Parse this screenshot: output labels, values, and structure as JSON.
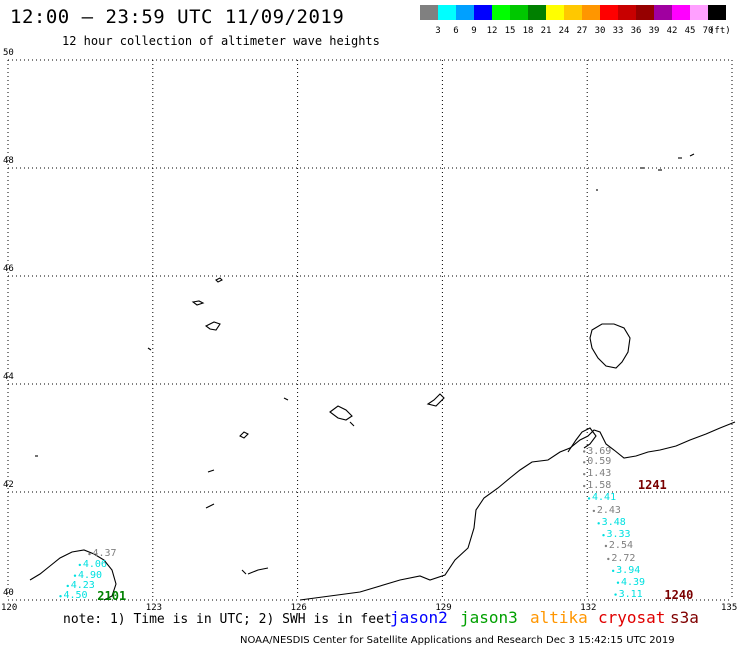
{
  "header": {
    "title": "12:00 — 23:59 UTC 11/09/2019",
    "subtitle": "12 hour collection of altimeter wave heights"
  },
  "colorbar": {
    "unit": "(ft)",
    "swatches": [
      {
        "color": "#808080",
        "label": "3"
      },
      {
        "color": "#00ffff",
        "label": "6"
      },
      {
        "color": "#00a0ff",
        "label": "9"
      },
      {
        "color": "#0000ff",
        "label": "12"
      },
      {
        "color": "#00ff00",
        "label": "15"
      },
      {
        "color": "#00c800",
        "label": "18"
      },
      {
        "color": "#008000",
        "label": "21"
      },
      {
        "color": "#ffff00",
        "label": "24"
      },
      {
        "color": "#ffc800",
        "label": "27"
      },
      {
        "color": "#ff9600",
        "label": "30"
      },
      {
        "color": "#ff0000",
        "label": "33"
      },
      {
        "color": "#c80000",
        "label": "36"
      },
      {
        "color": "#960000",
        "label": "39"
      },
      {
        "color": "#a000a0",
        "label": "42"
      },
      {
        "color": "#ff00ff",
        "label": "45"
      },
      {
        "color": "#ffa0ff",
        "label": "70"
      },
      {
        "color": "#000000",
        "label": ""
      }
    ]
  },
  "map": {
    "lon_labels": [
      "120",
      "123",
      "126",
      "129",
      "132",
      "135"
    ],
    "lat_labels": [
      "50",
      "48",
      "46",
      "44",
      "42",
      "40"
    ],
    "lon_range": [
      120,
      135
    ],
    "lat_range": [
      40,
      50
    ],
    "grid": "dotted"
  },
  "observations": [
    {
      "value": "3.69",
      "color": "#808080",
      "lon": 132.0,
      "lat": 42.75
    },
    {
      "value": "0.59",
      "color": "#808080",
      "lon": 132.0,
      "lat": 42.55
    },
    {
      "value": "1.43",
      "color": "#808080",
      "lon": 132.0,
      "lat": 42.33
    },
    {
      "value": "1.58",
      "color": "#808080",
      "lon": 132.0,
      "lat": 42.11
    },
    {
      "value": "4.41",
      "color": "#00e0e0",
      "lon": 132.1,
      "lat": 41.88
    },
    {
      "value": "2.43",
      "color": "#808080",
      "lon": 132.2,
      "lat": 41.65
    },
    {
      "value": "3.48",
      "color": "#00e0e0",
      "lon": 132.3,
      "lat": 41.42
    },
    {
      "value": "3.33",
      "color": "#00e0e0",
      "lon": 132.4,
      "lat": 41.2
    },
    {
      "value": "2.54",
      "color": "#808080",
      "lon": 132.45,
      "lat": 41.0
    },
    {
      "value": "2.72",
      "color": "#808080",
      "lon": 132.5,
      "lat": 40.76
    },
    {
      "value": "3.94",
      "color": "#00e0e0",
      "lon": 132.6,
      "lat": 40.54
    },
    {
      "value": "4.39",
      "color": "#00e0e0",
      "lon": 132.7,
      "lat": 40.32
    },
    {
      "value": "3.11",
      "color": "#00e0e0",
      "lon": 132.65,
      "lat": 40.1
    },
    {
      "value": "4.37",
      "color": "#808080",
      "lon": 121.75,
      "lat": 40.85
    },
    {
      "value": "4.06",
      "color": "#00e0e0",
      "lon": 121.55,
      "lat": 40.65
    },
    {
      "value": "4.90",
      "color": "#00e0e0",
      "lon": 121.45,
      "lat": 40.45
    },
    {
      "value": "4.23",
      "color": "#00e0e0",
      "lon": 121.3,
      "lat": 40.26
    },
    {
      "value": "4.50",
      "color": "#00e0e0",
      "lon": 121.15,
      "lat": 40.07
    }
  ],
  "passes": [
    {
      "time": "1241",
      "color": "#7a0000",
      "lon": 133.05,
      "lat": 42.12
    },
    {
      "time": "1240",
      "color": "#7a0000",
      "lon": 133.6,
      "lat": 40.08
    },
    {
      "time": "2101",
      "color": "#008000",
      "lon": 121.85,
      "lat": 40.06
    }
  ],
  "footer": {
    "note": "note: 1) Time is in UTC; 2) SWH is in feet",
    "credit": "NOAA/NESDIS Center for Satellite Applications and Research   Dec  3 15:42:15 UTC 2019"
  },
  "satellites": [
    {
      "name": "jason2",
      "color": "#0000ff"
    },
    {
      "name": "jason3",
      "color": "#00a000"
    },
    {
      "name": "altika",
      "color": "#ff9600"
    },
    {
      "name": "cryosat",
      "color": "#e00000"
    },
    {
      "name": "s3a",
      "color": "#800000"
    }
  ]
}
